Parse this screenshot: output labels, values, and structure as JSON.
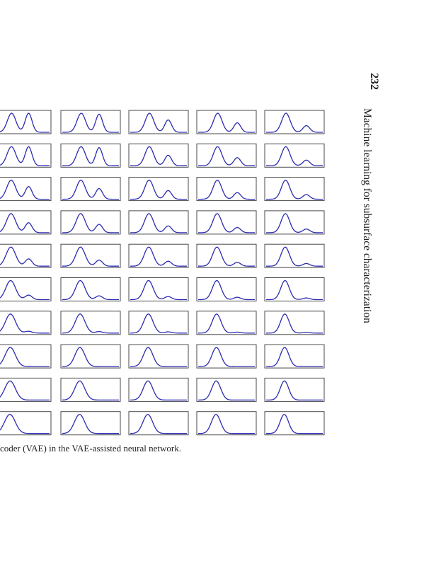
{
  "header": {
    "page_number": "232",
    "running_title": "Machine learning for subsurface characterization"
  },
  "figure": {
    "caption_text": "coder (VAE) in the VAE-assisted neural network.",
    "rows": 10,
    "columns": 5,
    "curve_color": "#2b2bb0",
    "frame_color": "#4a4a4a"
  }
}
